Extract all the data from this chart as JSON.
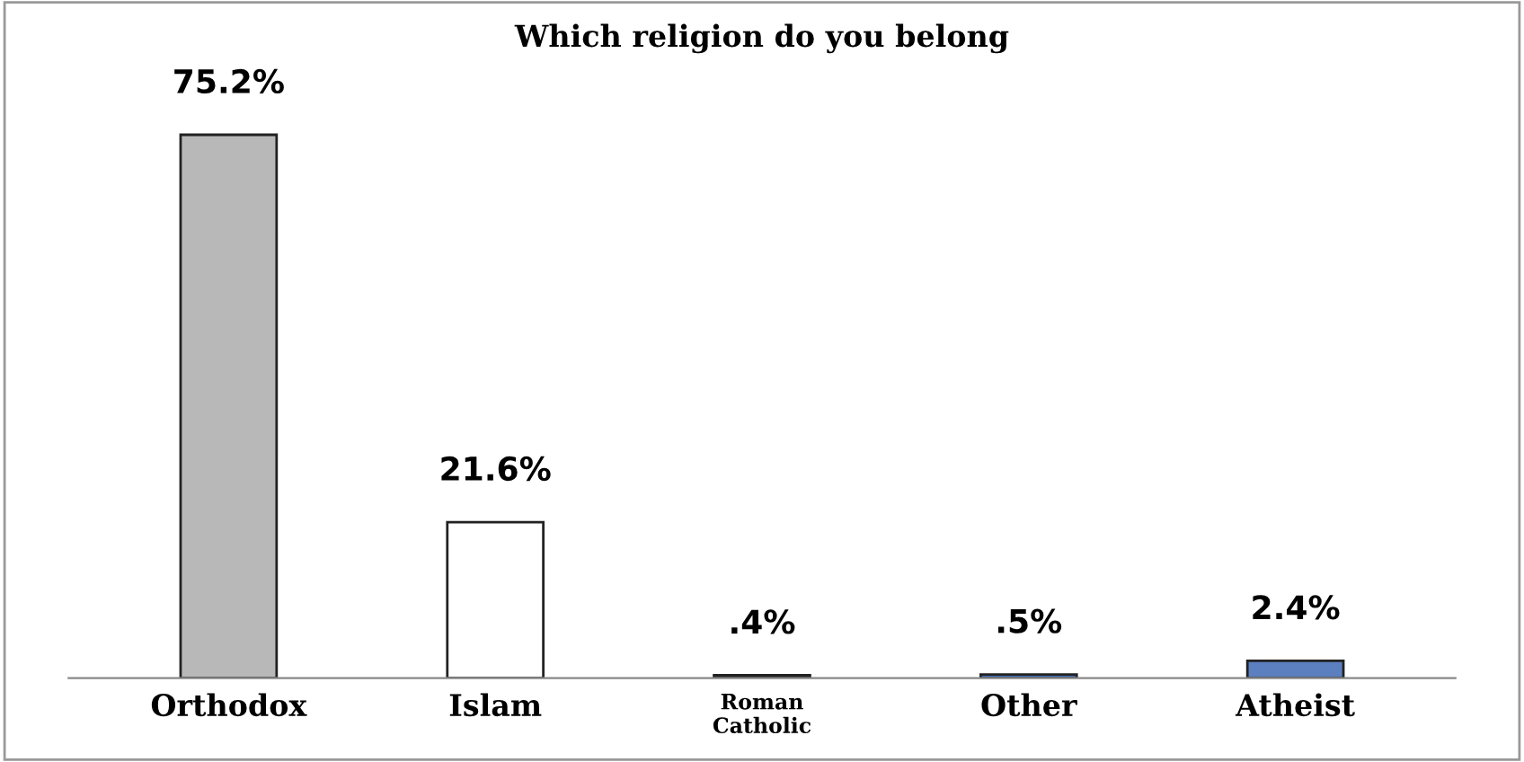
{
  "chart_data": {
    "type": "bar",
    "title": "Which religion do you belong",
    "categories": [
      "Orthodox",
      "Islam",
      "Roman\nCatholic",
      "Other",
      "Atheist"
    ],
    "values": [
      75.2,
      21.6,
      0.4,
      0.5,
      2.4
    ],
    "value_labels": [
      "75.2%",
      "21.6%",
      ".4%",
      ".5%",
      "2.4%"
    ],
    "colors": [
      "#b8b8b8",
      "#ffffff",
      "#404040",
      "#4472c4",
      "#5b7fbf"
    ],
    "grid": false,
    "legend": false
  }
}
